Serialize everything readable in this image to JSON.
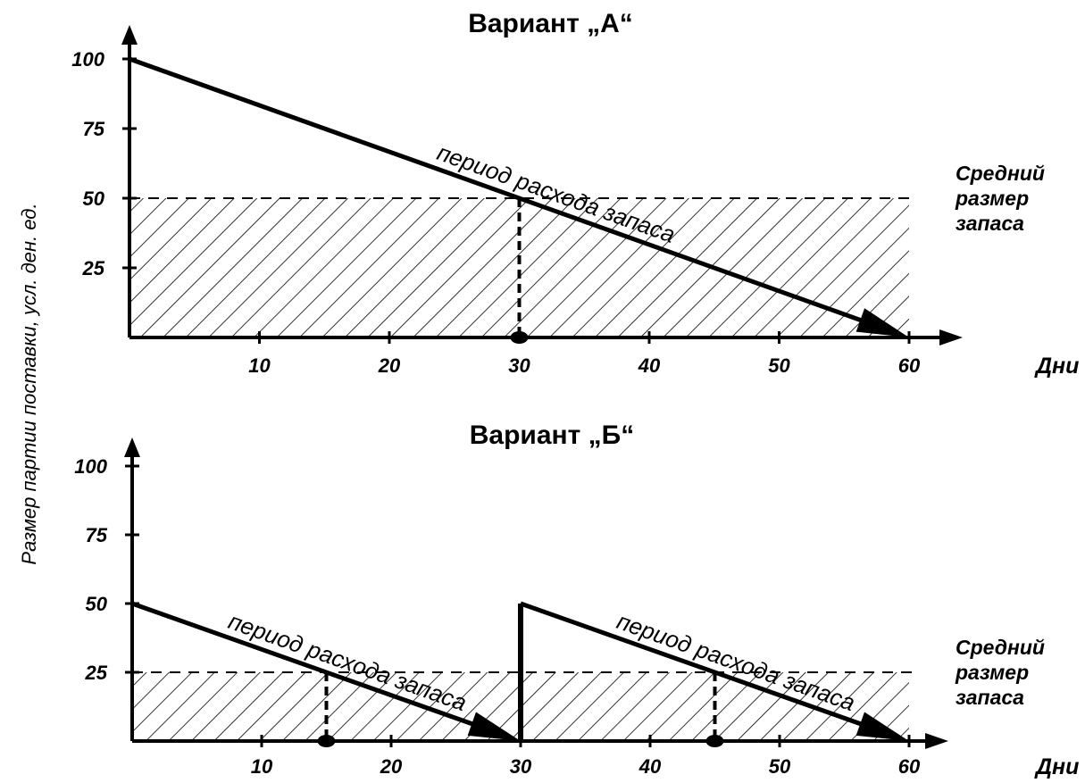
{
  "y_axis_label": "Размер партии поставки, усл. ден. ед.",
  "chart_data": [
    {
      "type": "line",
      "title": "Вариант „А“",
      "xlabel": "Дни",
      "ylabel": "Размер партии поставки, усл. ден. ед.",
      "xlim": [
        0,
        60
      ],
      "ylim": [
        0,
        100
      ],
      "x_ticks": [
        "10",
        "20",
        "30",
        "40",
        "50",
        "60"
      ],
      "y_ticks": [
        "100",
        "75",
        "50",
        "25"
      ],
      "segments": [
        {
          "label": "период расхода запаса",
          "x": [
            0,
            60
          ],
          "y": [
            100,
            0
          ]
        }
      ],
      "average_level": 50,
      "average_label": [
        "Средний",
        "размер",
        "запаса"
      ],
      "marked_days": [
        30
      ]
    },
    {
      "type": "line",
      "title": "Вариант „Б“",
      "xlabel": "Дни",
      "ylabel": "Размер партии поставки, усл. ден. ед.",
      "xlim": [
        0,
        60
      ],
      "ylim": [
        0,
        100
      ],
      "x_ticks": [
        "10",
        "20",
        "30",
        "40",
        "50",
        "60"
      ],
      "y_ticks": [
        "100",
        "75",
        "50",
        "25"
      ],
      "segments": [
        {
          "label": "период расхода запаса",
          "x": [
            0,
            30
          ],
          "y": [
            50,
            0
          ]
        },
        {
          "label": "период расхода запаса",
          "x": [
            30,
            60
          ],
          "y": [
            50,
            0
          ]
        }
      ],
      "average_level": 25,
      "average_label": [
        "Средний",
        "размер",
        "запаса"
      ],
      "marked_days": [
        15,
        45
      ]
    }
  ]
}
